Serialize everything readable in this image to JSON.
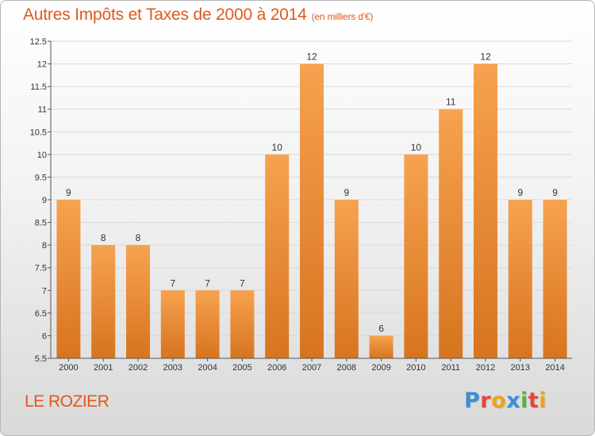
{
  "header": {
    "title": "Autres Impôts et Taxes de 2000 à 2014",
    "unit": "(en milliers d'€)"
  },
  "footer": {
    "place": "LE ROZIER",
    "logo_text": "Proxiti"
  },
  "colors": {
    "accent": "#e0591c",
    "bar_light": "#f7a24f",
    "bar_dark": "#d7741f",
    "logo": [
      "#3b8fd6",
      "#e8463c",
      "#f2a11a",
      "#3b8fd6",
      "#59b33c",
      "#e8463c",
      "#f2a11a"
    ]
  },
  "chart_data": {
    "type": "bar",
    "categories": [
      "2000",
      "2001",
      "2002",
      "2003",
      "2004",
      "2005",
      "2006",
      "2007",
      "2008",
      "2009",
      "2010",
      "2011",
      "2012",
      "2013",
      "2014"
    ],
    "values": [
      9,
      8,
      8,
      7,
      7,
      7,
      10,
      12,
      9,
      6,
      10,
      11,
      12,
      9,
      9
    ],
    "data_labels": [
      "9",
      "8",
      "8",
      "7",
      "7",
      "7",
      "10",
      "12",
      "9",
      "6",
      "10",
      "11",
      "12",
      "9",
      "9"
    ],
    "title": "Autres Impôts et Taxes de 2000 à 2014",
    "xlabel": "",
    "ylabel": "",
    "ylim": [
      5.5,
      12.5
    ],
    "yticks": [
      "5.5",
      "6",
      "6.5",
      "7",
      "7.5",
      "8",
      "8.5",
      "9",
      "9.5",
      "10",
      "10.5",
      "11",
      "11.5",
      "12",
      "12.5"
    ],
    "grid": true,
    "legend": "none"
  }
}
